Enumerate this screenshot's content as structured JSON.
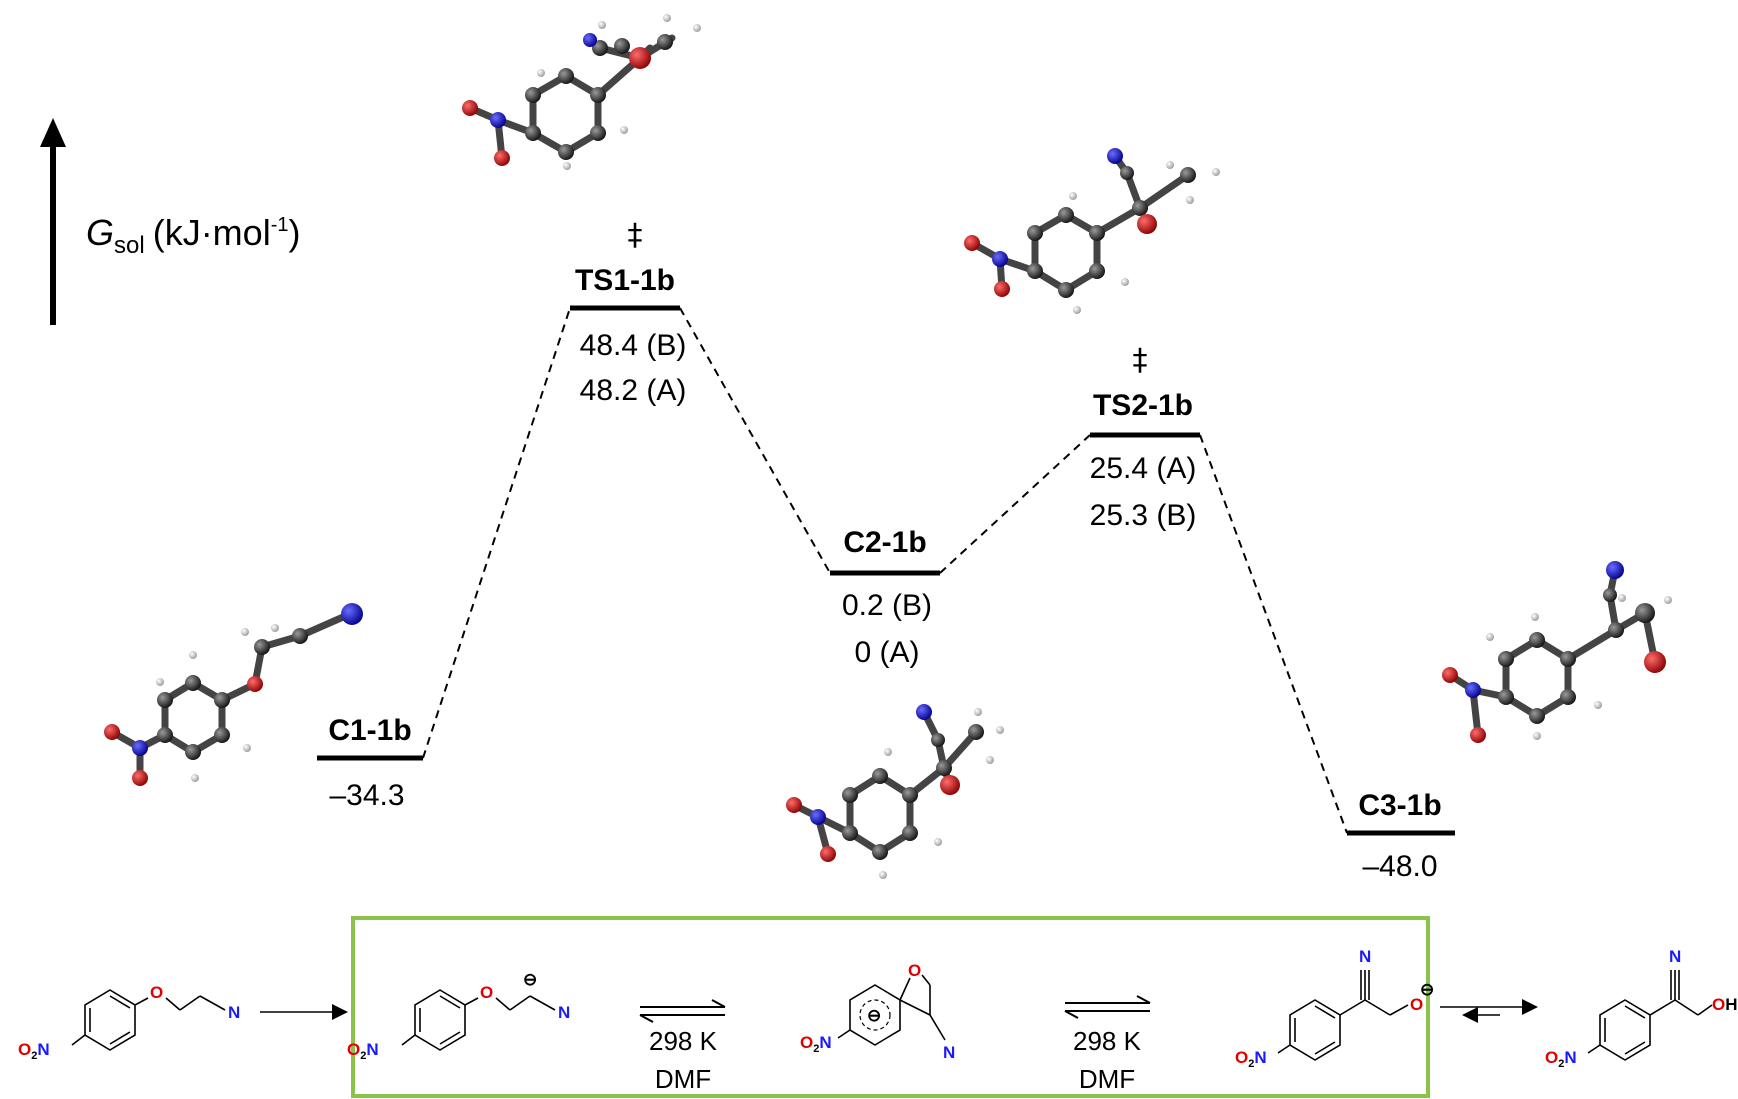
{
  "axis": {
    "symbol": "G",
    "subscript": "sol",
    "unit": "(kJ·mol",
    "unit_exp": "-1",
    "unit_close": ")"
  },
  "levels": [
    {
      "id": "C1-1b",
      "values": [
        "–34.3"
      ]
    },
    {
      "id": "TS1-1b",
      "dagger": "‡",
      "values": [
        "48.4 (B)",
        "48.2 (A)"
      ]
    },
    {
      "id": "C2-1b",
      "values": [
        "0.2 (B)",
        "0 (A)"
      ]
    },
    {
      "id": "TS2-1b",
      "dagger": "‡",
      "values": [
        "25.4 (A)",
        "25.3 (B)"
      ]
    },
    {
      "id": "C3-1b",
      "values": [
        "–48.0"
      ]
    }
  ],
  "scheme": {
    "conditions_1": [
      "298 K",
      "DMF"
    ],
    "conditions_2": [
      "298 K",
      "DMF"
    ],
    "atom_labels": {
      "O": "O",
      "N": "N",
      "O2N_a": "O",
      "O2N_b": "2",
      "O2N_c": "N",
      "OH_a": "O",
      "OH_b": "H",
      "minus": "⊖"
    }
  },
  "colors": {
    "box": "#8bc34a",
    "oxygen": "#e00000",
    "nitrogen": "#1a1aff",
    "carbon": "#333333",
    "hydrogen": "#dddddd"
  }
}
